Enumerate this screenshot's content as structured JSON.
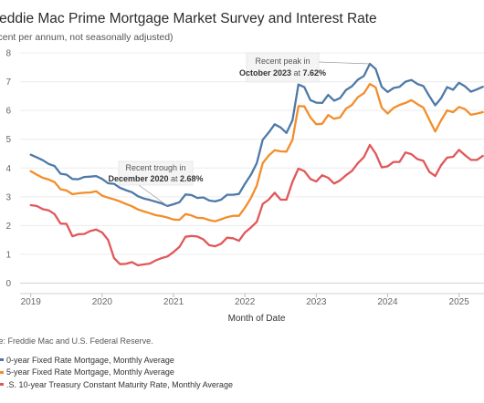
{
  "page": {
    "title": "reddie Mac Prime Mortgage Market Survey and Interest Rate",
    "subtitle": "rcent per annum, not seasonally adjusted)",
    "source": "ce: Freddie Mac and U.S. Federal Reserve."
  },
  "chart_data": {
    "type": "line",
    "xlabel": "Month of Date",
    "ylabel": "",
    "xlim": [
      2018.85,
      2025.35
    ],
    "ylim": [
      -0.3,
      8.0
    ],
    "y_ticks": [
      0,
      1,
      2,
      3,
      4,
      5,
      6,
      7,
      8
    ],
    "x_ticks": [
      2019,
      2020,
      2021,
      2022,
      2023,
      2024,
      2025
    ],
    "x_tick_labels": [
      "2019",
      "2020",
      "2021",
      "2022",
      "2023",
      "2024",
      "2025"
    ],
    "grid": "horizontal",
    "series": [
      {
        "name": "0-year Fixed Rate Mortgage, Monthly Average",
        "color": "#4e79a7",
        "x": [
          2019.0,
          2019.083,
          2019.167,
          2019.25,
          2019.333,
          2019.417,
          2019.5,
          2019.583,
          2019.667,
          2019.75,
          2019.833,
          2019.917,
          2020.0,
          2020.083,
          2020.167,
          2020.25,
          2020.333,
          2020.417,
          2020.5,
          2020.583,
          2020.667,
          2020.75,
          2020.833,
          2020.917,
          2021.0,
          2021.083,
          2021.167,
          2021.25,
          2021.333,
          2021.417,
          2021.5,
          2021.583,
          2021.667,
          2021.75,
          2021.833,
          2021.917,
          2022.0,
          2022.083,
          2022.167,
          2022.25,
          2022.333,
          2022.417,
          2022.5,
          2022.583,
          2022.667,
          2022.75,
          2022.833,
          2022.917,
          2023.0,
          2023.083,
          2023.167,
          2023.25,
          2023.333,
          2023.417,
          2023.5,
          2023.583,
          2023.667,
          2023.75,
          2023.833,
          2023.917,
          2024.0,
          2024.083,
          2024.167,
          2024.25,
          2024.333,
          2024.417,
          2024.5,
          2024.583,
          2024.667,
          2024.75,
          2024.833,
          2024.917,
          2025.0,
          2025.083,
          2025.167,
          2025.25,
          2025.333
        ],
        "values": [
          4.46,
          4.37,
          4.27,
          4.14,
          4.07,
          3.8,
          3.77,
          3.62,
          3.61,
          3.69,
          3.7,
          3.72,
          3.62,
          3.47,
          3.45,
          3.31,
          3.23,
          3.16,
          3.02,
          2.94,
          2.89,
          2.83,
          2.77,
          2.68,
          2.74,
          2.81,
          3.08,
          3.06,
          2.96,
          2.98,
          2.87,
          2.84,
          2.9,
          3.07,
          3.07,
          3.1,
          3.45,
          3.76,
          4.17,
          4.98,
          5.23,
          5.52,
          5.41,
          5.22,
          5.66,
          6.9,
          6.81,
          6.36,
          6.27,
          6.26,
          6.54,
          6.34,
          6.43,
          6.71,
          6.84,
          7.07,
          7.2,
          7.62,
          7.44,
          6.82,
          6.64,
          6.78,
          6.82,
          7.0,
          7.06,
          6.92,
          6.85,
          6.5,
          6.18,
          6.43,
          6.81,
          6.72,
          6.96,
          6.84,
          6.65,
          6.73,
          6.82
        ]
      },
      {
        "name": "5-year Fixed Rate Mortgage, Monthly Average",
        "color": "#f28e2b",
        "x": [
          2019.0,
          2019.083,
          2019.167,
          2019.25,
          2019.333,
          2019.417,
          2019.5,
          2019.583,
          2019.667,
          2019.75,
          2019.833,
          2019.917,
          2020.0,
          2020.083,
          2020.167,
          2020.25,
          2020.333,
          2020.417,
          2020.5,
          2020.583,
          2020.667,
          2020.75,
          2020.833,
          2020.917,
          2021.0,
          2021.083,
          2021.167,
          2021.25,
          2021.333,
          2021.417,
          2021.5,
          2021.583,
          2021.667,
          2021.75,
          2021.833,
          2021.917,
          2022.0,
          2022.083,
          2022.167,
          2022.25,
          2022.333,
          2022.417,
          2022.5,
          2022.583,
          2022.667,
          2022.75,
          2022.833,
          2022.917,
          2023.0,
          2023.083,
          2023.167,
          2023.25,
          2023.333,
          2023.417,
          2023.5,
          2023.583,
          2023.667,
          2023.75,
          2023.833,
          2023.917,
          2024.0,
          2024.083,
          2024.167,
          2024.25,
          2024.333,
          2024.417,
          2024.5,
          2024.583,
          2024.667,
          2024.75,
          2024.833,
          2024.917,
          2025.0,
          2025.083,
          2025.167,
          2025.25,
          2025.333
        ],
        "values": [
          3.89,
          3.77,
          3.66,
          3.6,
          3.51,
          3.26,
          3.22,
          3.09,
          3.12,
          3.14,
          3.15,
          3.19,
          3.04,
          2.97,
          2.91,
          2.84,
          2.75,
          2.67,
          2.56,
          2.49,
          2.43,
          2.36,
          2.33,
          2.28,
          2.21,
          2.2,
          2.4,
          2.35,
          2.27,
          2.26,
          2.19,
          2.15,
          2.22,
          2.29,
          2.34,
          2.34,
          2.62,
          2.95,
          3.39,
          4.17,
          4.43,
          4.62,
          4.58,
          4.57,
          4.98,
          6.15,
          6.14,
          5.76,
          5.52,
          5.54,
          5.84,
          5.71,
          5.76,
          6.06,
          6.19,
          6.46,
          6.6,
          6.92,
          6.8,
          6.1,
          5.89,
          6.09,
          6.19,
          6.26,
          6.36,
          6.22,
          6.1,
          5.68,
          5.27,
          5.66,
          6.0,
          5.94,
          6.12,
          6.05,
          5.85,
          5.89,
          5.94
        ]
      },
      {
        "name": ".S. 10-year Treasury Constant Maturity Rate, Monthly Average",
        "color": "#e15759",
        "x": [
          2019.0,
          2019.083,
          2019.167,
          2019.25,
          2019.333,
          2019.417,
          2019.5,
          2019.583,
          2019.667,
          2019.75,
          2019.833,
          2019.917,
          2020.0,
          2020.083,
          2020.167,
          2020.25,
          2020.333,
          2020.417,
          2020.5,
          2020.583,
          2020.667,
          2020.75,
          2020.833,
          2020.917,
          2021.0,
          2021.083,
          2021.167,
          2021.25,
          2021.333,
          2021.417,
          2021.5,
          2021.583,
          2021.667,
          2021.75,
          2021.833,
          2021.917,
          2022.0,
          2022.083,
          2022.167,
          2022.25,
          2022.333,
          2022.417,
          2022.5,
          2022.583,
          2022.667,
          2022.75,
          2022.833,
          2022.917,
          2023.0,
          2023.083,
          2023.167,
          2023.25,
          2023.333,
          2023.417,
          2023.5,
          2023.583,
          2023.667,
          2023.75,
          2023.833,
          2023.917,
          2024.0,
          2024.083,
          2024.167,
          2024.25,
          2024.333,
          2024.417,
          2024.5,
          2024.583,
          2024.667,
          2024.75,
          2024.833,
          2024.917,
          2025.0,
          2025.083,
          2025.167,
          2025.25,
          2025.333
        ],
        "values": [
          2.71,
          2.68,
          2.57,
          2.53,
          2.4,
          2.07,
          2.06,
          1.63,
          1.7,
          1.71,
          1.81,
          1.86,
          1.76,
          1.5,
          0.87,
          0.66,
          0.67,
          0.73,
          0.62,
          0.65,
          0.68,
          0.79,
          0.87,
          0.93,
          1.08,
          1.26,
          1.61,
          1.64,
          1.62,
          1.52,
          1.32,
          1.28,
          1.37,
          1.58,
          1.56,
          1.47,
          1.76,
          1.93,
          2.13,
          2.75,
          2.9,
          3.14,
          2.9,
          2.9,
          3.52,
          3.98,
          3.89,
          3.62,
          3.53,
          3.75,
          3.66,
          3.46,
          3.57,
          3.75,
          3.9,
          4.17,
          4.38,
          4.8,
          4.5,
          4.02,
          4.06,
          4.21,
          4.21,
          4.54,
          4.48,
          4.31,
          4.25,
          3.87,
          3.72,
          4.1,
          4.36,
          4.39,
          4.63,
          4.45,
          4.28,
          4.28,
          4.42
        ]
      }
    ],
    "annotations": [
      {
        "line1": "Recent trough in",
        "line2_date": "December 2020",
        "line2_mid": " at ",
        "line2_value": "2.68%",
        "x": 2020.917,
        "y": 2.68
      },
      {
        "line1": "Recent peak in",
        "line2_date": "October 2023",
        "line2_mid": " at ",
        "line2_value": "7.62%",
        "x": 2023.75,
        "y": 7.62
      }
    ]
  }
}
